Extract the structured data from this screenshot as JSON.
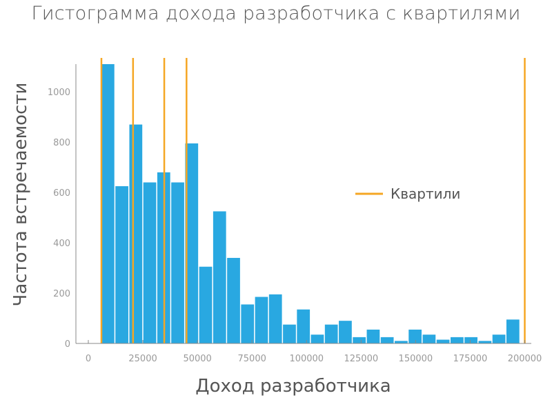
{
  "chart_data": {
    "type": "bar",
    "title": "Гистограмма дохода разработчика с квартилями",
    "xlabel": "Доход разработчика",
    "ylabel": "Частота встречаемости",
    "xlim": [
      0,
      203000
    ],
    "ylim": [
      0,
      1110
    ],
    "xticks": [
      0,
      25000,
      50000,
      75000,
      100000,
      125000,
      150000,
      175000,
      200000
    ],
    "yticks": [
      0,
      200,
      400,
      600,
      800,
      1000
    ],
    "bin_width": 6400,
    "bins": [
      {
        "start": 6000,
        "count": 1110
      },
      {
        "start": 12400,
        "count": 625
      },
      {
        "start": 18800,
        "count": 870
      },
      {
        "start": 25200,
        "count": 640
      },
      {
        "start": 31600,
        "count": 680
      },
      {
        "start": 38000,
        "count": 640
      },
      {
        "start": 44400,
        "count": 795
      },
      {
        "start": 50800,
        "count": 305
      },
      {
        "start": 57200,
        "count": 525
      },
      {
        "start": 63600,
        "count": 340
      },
      {
        "start": 70000,
        "count": 155
      },
      {
        "start": 76400,
        "count": 185
      },
      {
        "start": 82800,
        "count": 195
      },
      {
        "start": 89200,
        "count": 75
      },
      {
        "start": 95600,
        "count": 135
      },
      {
        "start": 102000,
        "count": 35
      },
      {
        "start": 108400,
        "count": 75
      },
      {
        "start": 114800,
        "count": 90
      },
      {
        "start": 121200,
        "count": 25
      },
      {
        "start": 127600,
        "count": 55
      },
      {
        "start": 134000,
        "count": 25
      },
      {
        "start": 140400,
        "count": 10
      },
      {
        "start": 146800,
        "count": 55
      },
      {
        "start": 153200,
        "count": 35
      },
      {
        "start": 159600,
        "count": 15
      },
      {
        "start": 166000,
        "count": 25
      },
      {
        "start": 172400,
        "count": 25
      },
      {
        "start": 178800,
        "count": 10
      },
      {
        "start": 185200,
        "count": 35
      },
      {
        "start": 191600,
        "count": 95
      }
    ],
    "quartiles": [
      6000,
      20500,
      34800,
      45000,
      200000
    ],
    "legend": {
      "label": "Квартили",
      "position": "center-right"
    },
    "grid": false,
    "colors": {
      "bars": "#29a8e1",
      "quartiles": "#f5a623"
    }
  }
}
